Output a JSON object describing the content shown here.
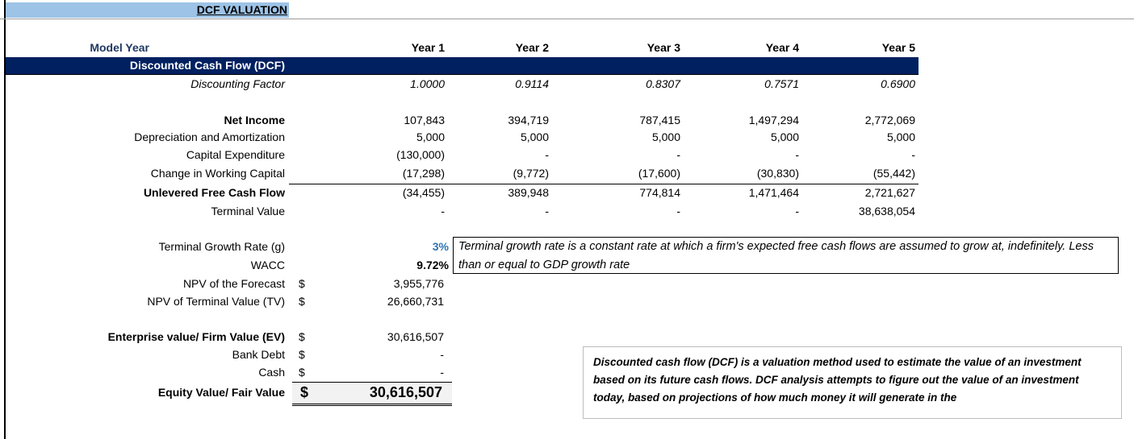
{
  "title": "DCF VALUATION",
  "header": {
    "label": "Model Year",
    "years": [
      "Year 1",
      "Year 2",
      "Year 3",
      "Year 4",
      "Year 5"
    ]
  },
  "section": "Discounted Cash Flow (DCF)",
  "colors": {
    "navy": "#002060",
    "title_band": "#9dc3e6",
    "input_blue": "#2f75b5"
  },
  "rows": [
    {
      "label": "Discounting Factor",
      "values": [
        "1.0000",
        "0.9114",
        "0.8307",
        "0.7571",
        "0.6900"
      ]
    },
    {
      "label": "Net Income",
      "values": [
        "107,843",
        "394,719",
        "787,415",
        "1,497,294",
        "2,772,069"
      ]
    },
    {
      "label": "Depreciation and Amortization",
      "values": [
        "5,000",
        "5,000",
        "5,000",
        "5,000",
        "5,000"
      ]
    },
    {
      "label": "Capital Expenditure",
      "values": [
        "(130,000)",
        "-",
        "-",
        "-",
        "-"
      ]
    },
    {
      "label": "Change in Working Capital",
      "values": [
        "(17,298)",
        "(9,772)",
        "(17,600)",
        "(30,830)",
        "(55,442)"
      ]
    },
    {
      "label": "Unlevered Free Cash Flow",
      "values": [
        "(34,455)",
        "389,948",
        "774,814",
        "1,471,464",
        "2,721,627"
      ]
    },
    {
      "label": "Terminal Value",
      "values": [
        "-",
        "-",
        "-",
        "-",
        "38,638,054"
      ]
    }
  ],
  "summary": [
    {
      "label": "Terminal Growth Rate (g)",
      "currency": "",
      "value": "3%"
    },
    {
      "label": "WACC",
      "currency": "",
      "value": "9.72%"
    },
    {
      "label": "NPV of the Forecast",
      "currency": "$",
      "value": "3,955,776"
    },
    {
      "label": "NPV of Terminal Value (TV)",
      "currency": "$",
      "value": "26,660,731"
    },
    {
      "label": "Enterprise value/ Firm Value (EV)",
      "currency": "$",
      "value": "30,616,507"
    },
    {
      "label": "Bank Debt",
      "currency": "$",
      "value": "-"
    },
    {
      "label": "Cash",
      "currency": "$",
      "value": "-"
    },
    {
      "label": "Equity Value/ Fair Value",
      "currency": "$",
      "value": "30,616,507"
    }
  ],
  "notes": {
    "terminal_growth": "Terminal growth rate is a constant rate at which a firm's expected free cash flows are assumed to grow at, indefinitely. Less than or equal to GDP growth rate",
    "dcf": "Discounted cash flow (DCF) is a valuation method used to estimate the value of an investment based on its future cash flows. DCF analysis attempts to figure out the value of an investment today, based on projections of how much money it will generate in the"
  }
}
